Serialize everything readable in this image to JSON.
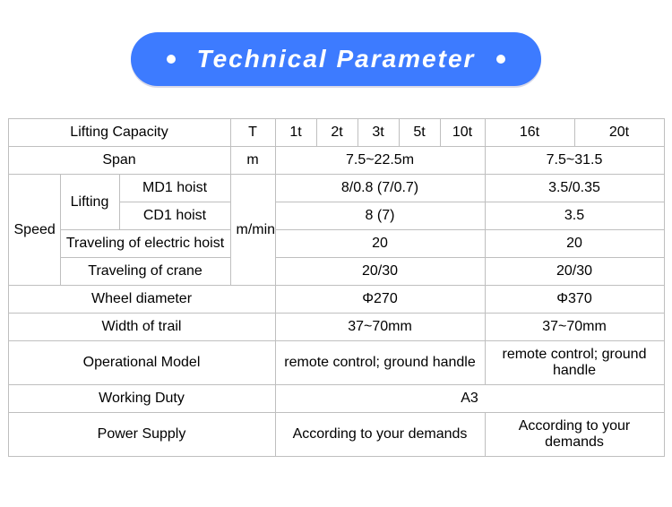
{
  "banner": {
    "title": "Technical Parameter"
  },
  "colors": {
    "banner_bg": "#3d7bff",
    "banner_text": "#ffffff",
    "border": "#bfbfbf",
    "text": "#000000",
    "page_bg": "#ffffff"
  },
  "rows": {
    "lifting_capacity": {
      "label": "Lifting Capacity",
      "unit": "T",
      "values": [
        "1t",
        "2t",
        "3t",
        "5t",
        "10t",
        "16t",
        "20t"
      ]
    },
    "span": {
      "label": "Span",
      "unit": "m",
      "group1": "7.5~22.5m",
      "group2": "7.5~31.5"
    },
    "speed": {
      "label": "Speed",
      "unit": "m/min",
      "lifting": {
        "label": "Lifting",
        "md1": {
          "label": "MD1 hoist",
          "g1": "8/0.8 (7/0.7)",
          "g2": "3.5/0.35"
        },
        "cd1": {
          "label": "CD1 hoist",
          "g1": "8 (7)",
          "g2": "3.5"
        }
      },
      "trav_hoist": {
        "label": "Traveling of electric hoist",
        "g1": "20",
        "g2": "20"
      },
      "trav_crane": {
        "label": "Traveling of crane",
        "g1": "20/30",
        "g2": "20/30"
      }
    },
    "wheel": {
      "label": "Wheel diameter",
      "g1": "Φ270",
      "g2": "Φ370"
    },
    "trail": {
      "label": "Width of trail",
      "g1": "37~70mm",
      "g2": "37~70mm"
    },
    "opmodel": {
      "label": "Operational Model",
      "g1": "remote control; ground handle",
      "g2": "remote control; ground handle"
    },
    "duty": {
      "label": "Working Duty",
      "all": "A3"
    },
    "power": {
      "label": "Power Supply",
      "g1": "According to your demands",
      "g2": "According to your demands"
    }
  }
}
